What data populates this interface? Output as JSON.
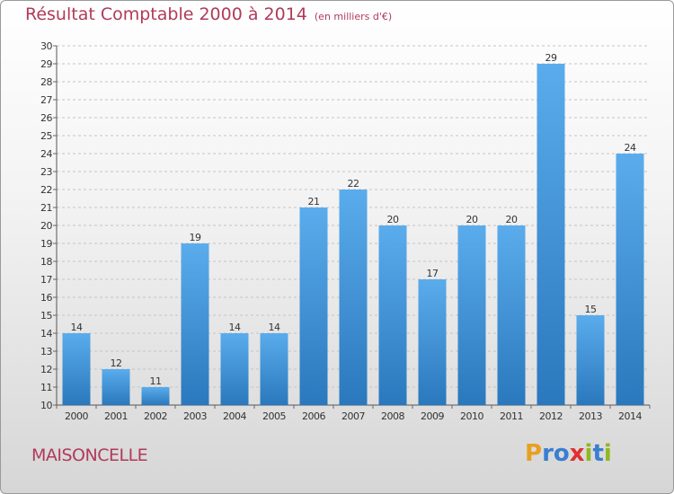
{
  "chart_data": {
    "type": "bar",
    "title": "Résultat Comptable 2000 à 2014",
    "subtitle": "(en milliers d'€)",
    "categories": [
      "2000",
      "2001",
      "2002",
      "2003",
      "2004",
      "2005",
      "2006",
      "2007",
      "2008",
      "2009",
      "2010",
      "2011",
      "2012",
      "2013",
      "2014"
    ],
    "values": [
      14,
      12,
      11,
      19,
      14,
      14,
      21,
      22,
      20,
      17,
      20,
      20,
      29,
      15,
      24
    ],
    "ylim": [
      10,
      30
    ],
    "yticks": [
      10,
      11,
      12,
      13,
      14,
      15,
      16,
      17,
      18,
      19,
      20,
      21,
      22,
      23,
      24,
      25,
      26,
      27,
      28,
      29,
      30
    ],
    "grid": "horizontal-dashed",
    "bar_color_top": "#5aacec",
    "bar_color_bottom": "#2a78bd"
  },
  "footer": {
    "commune": "MAISONCELLE",
    "logo_letters": [
      "P",
      "r",
      "o",
      "x",
      "i",
      "t",
      "i"
    ],
    "logo_colors": [
      "#e8a020",
      "#3a7ed0",
      "#3a7ed0",
      "#e03030",
      "#90b820",
      "#3a7ed0",
      "#90b820"
    ]
  },
  "colors": {
    "title": "#b03a5a"
  }
}
